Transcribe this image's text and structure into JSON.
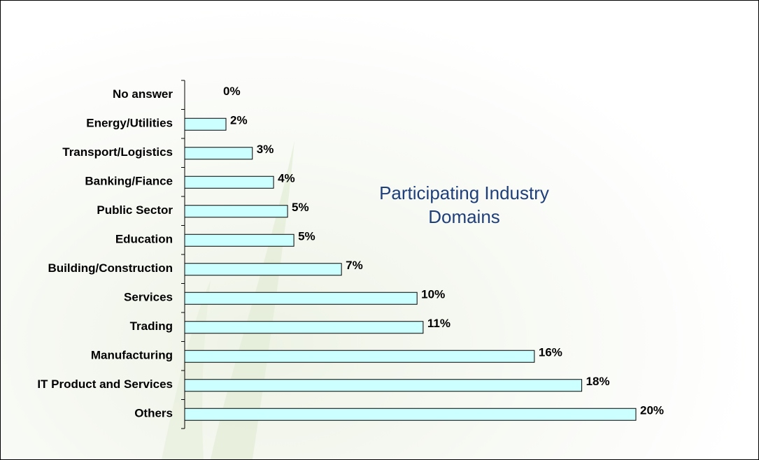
{
  "chart_data": {
    "type": "bar",
    "orientation": "horizontal",
    "title": "Participating Industry Domains",
    "categories": [
      "No answer",
      "Energy/Utilities",
      "Transport/Logistics",
      "Banking/Fiance",
      "Public Sector",
      "Education",
      "Building/Construction",
      "Services",
      "Trading",
      "Manufacturing",
      "IT Product and Services",
      "Others"
    ],
    "values": [
      0,
      1.83,
      3.0,
      3.94,
      4.56,
      4.84,
      6.95,
      10.3,
      10.57,
      15.5,
      17.6,
      20
    ],
    "value_labels": [
      "0%",
      "2%",
      "3%",
      "4%",
      "5%",
      "5%",
      "7%",
      "10%",
      "11%",
      "16%",
      "18%",
      "20%"
    ],
    "color": "#ccffff",
    "xlim": [
      0,
      20
    ]
  }
}
